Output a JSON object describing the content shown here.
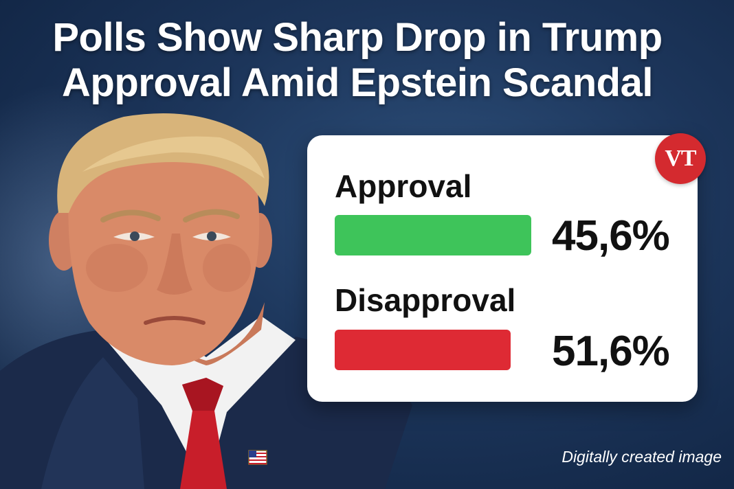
{
  "headline": {
    "line1": "Polls Show Sharp Drop in Trump",
    "line2": "Approval Amid Epstein Scandal"
  },
  "logo": {
    "text": "VT",
    "color": "#d42a2f"
  },
  "chart_data": {
    "type": "bar",
    "orientation": "horizontal",
    "categories": [
      "Approval",
      "Disapproval"
    ],
    "values": [
      45.6,
      51.6
    ],
    "value_labels": [
      "45,6%",
      "51,6%"
    ],
    "colors": [
      "#3ec45a",
      "#de2a34"
    ],
    "title": "",
    "xlabel": "",
    "ylabel": "",
    "unit": "%",
    "grid": false,
    "legend": "none"
  },
  "footnote": "Digitally created image"
}
